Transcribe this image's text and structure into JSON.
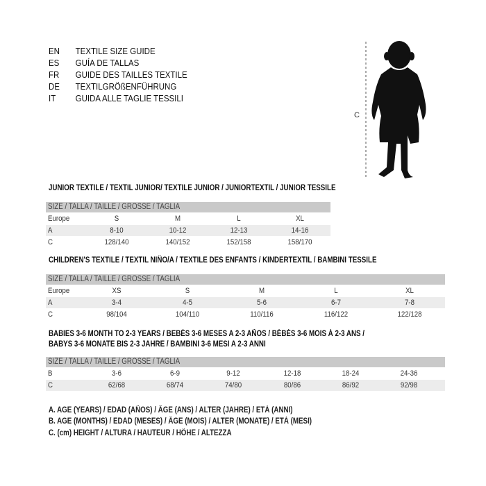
{
  "languages": [
    {
      "code": "EN",
      "text": "TEXTILE SIZE GUIDE"
    },
    {
      "code": "ES",
      "text": "GUÍA DE TALLAS"
    },
    {
      "code": "FR",
      "text": "GUIDE DES TAILLES TEXTILE"
    },
    {
      "code": "DE",
      "text": "TEXTILGRÖßENFÜHRUNG"
    },
    {
      "code": "IT",
      "text": "GUIDA ALLE TAGLIE TESSILI"
    }
  ],
  "figure": {
    "measure_label": "C"
  },
  "tables": [
    {
      "titles": [
        "JUNIOR TEXTILE / TEXTIL JUNIOR/ TEXTILE JUNIOR / JUNIORTEXTIL / JUNIOR TESSILE"
      ],
      "header": "SIZE / TALLA / TAILLE / GRÖSSE / TAGLIA",
      "rows": [
        {
          "label": "Europe",
          "cells": [
            "S",
            "M",
            "L",
            "XL"
          ]
        },
        {
          "label": "A",
          "cells": [
            "8-10",
            "10-12",
            "12-13",
            "14-16"
          ]
        },
        {
          "label": "C",
          "cells": [
            "128/140",
            "140/152",
            "152/158",
            "158/170"
          ]
        }
      ]
    },
    {
      "titles": [
        "CHILDREN'S TEXTILE / TEXTIL NIÑO/A / TEXTILE DES ENFANTS / KINDERTEXTIL / BAMBINI TESSILE"
      ],
      "header": "SIZE / TALLA / TAILLE / GRÖSSE / TAGLIA",
      "rows": [
        {
          "label": "Europe",
          "cells": [
            "XS",
            "S",
            "M",
            "L",
            "XL"
          ]
        },
        {
          "label": "A",
          "cells": [
            "3-4",
            "4-5",
            "5-6",
            "6-7",
            "7-8"
          ]
        },
        {
          "label": "C",
          "cells": [
            "98/104",
            "104/110",
            "110/116",
            "116/122",
            "122/128"
          ]
        }
      ]
    },
    {
      "titles": [
        "BABIES 3-6 MONTH TO 2-3 YEARS / BEBÉS 3-6 MESES A 2-3 AÑOS / BÉBÉS 3-6 MOIS À 2-3 ANS /",
        "BABYS 3-6 MONATE BIS 2-3 JAHRE / BAMBINI 3-6 MESI A 2-3 ANNI"
      ],
      "header": "SIZE / TALLA / TAILLE / GRÖSSE / TAGLIA",
      "rows": [
        {
          "label": "B",
          "cells": [
            "3-6",
            "6-9",
            "9-12",
            "12-18",
            "18-24",
            "24-36"
          ]
        },
        {
          "label": "C",
          "cells": [
            "62/68",
            "68/74",
            "74/80",
            "80/86",
            "86/92",
            "92/98"
          ]
        }
      ]
    }
  ],
  "legend": [
    "A. AGE (YEARS) / EDAD (AÑOS) / ÂGE (ANS) / ALTER (JAHRE) / ETÀ (ANNI)",
    "B. AGE (MONTHS) / EDAD (MESES) / ÂGE (MOIS) / ALTER (MONATE) / ETÀ (MESI)",
    "C. (cm) HEIGHT / ALTURA / HAUTEUR / HÖHE / ALTEZZA"
  ]
}
